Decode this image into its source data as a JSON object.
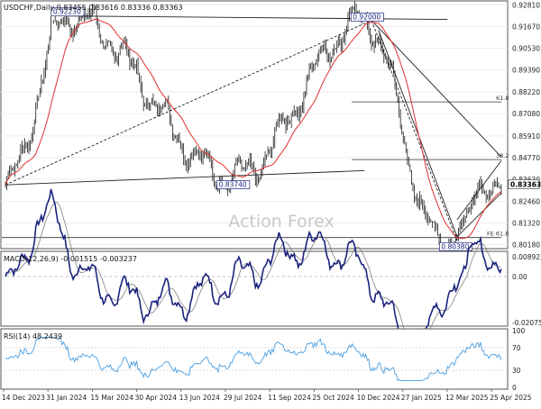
{
  "chart_data": [
    {
      "type": "candlestick",
      "title": "USDCHF,Daily  0.83455 0.83616 0.83336 0.83363",
      "watermark": "Action Forex",
      "ylim": [
        0.8006,
        0.9293
      ],
      "y_ticks": [
        "0.92810",
        "0.91670",
        "0.90530",
        "0.89390",
        "0.88220",
        "0.87080",
        "0.85910",
        "0.84770",
        "0.83630",
        "0.82460",
        "0.81320",
        "0.80180"
      ],
      "current_price": "0.83363",
      "x_ticks": [
        "14 Dec 2023",
        "31 Jan 2024",
        "15 Mar 2024",
        "30 Apr 2024",
        "13 Jun 2024",
        "29 Jul 2024",
        "11 Sep 2024",
        "25 Oct 2024",
        "10 Dec 2024",
        "27 Jan 2025",
        "12 Mar 2025",
        "25 Apr 2025"
      ],
      "price_labels": [
        "0.92230",
        "0.92000",
        "0.83740",
        "0.80380"
      ],
      "fib_labels": [
        "61.8",
        "38.2",
        "FE 61.8"
      ],
      "fib_levels": [
        0.877,
        0.8466,
        0.8055
      ],
      "key_points": [
        {
          "date": "14 Dec 2023",
          "label": "",
          "value": 0.8333
        },
        {
          "date": "Feb 2024",
          "label": "0.92230",
          "value": 0.9223
        },
        {
          "date": "Aug 2024",
          "label": "0.83740",
          "value": 0.8374
        },
        {
          "date": "Jan 2025",
          "label": "0.92000",
          "value": 0.92
        },
        {
          "date": "Apr 2025",
          "label": "0.80380",
          "value": 0.8038
        },
        {
          "date": "May 2025",
          "label": "",
          "value": 0.8336
        }
      ],
      "colors": {
        "candles": "#1a1a1a",
        "moving_average": "#e03030",
        "trendlines": "#222222"
      }
    },
    {
      "type": "line",
      "title": "MACD(12,26,9) -0.001515 -0.003237",
      "ylim": [
        -0.0215,
        0.0105
      ],
      "y_ticks": [
        "0.008923",
        "0.00",
        "-0.020759"
      ],
      "series": [
        {
          "name": "",
          "color": "#1a237e"
        },
        {
          "name": "",
          "color": "#808080"
        }
      ]
    },
    {
      "type": "line",
      "title": "RSI(14) 48.2439",
      "ylim": [
        0,
        100
      ],
      "y_ticks": [
        "100",
        "70",
        "30",
        "0"
      ],
      "series": [
        {
          "name": "",
          "color": "#4a9de0",
          "last": 48.2439
        }
      ]
    }
  ]
}
